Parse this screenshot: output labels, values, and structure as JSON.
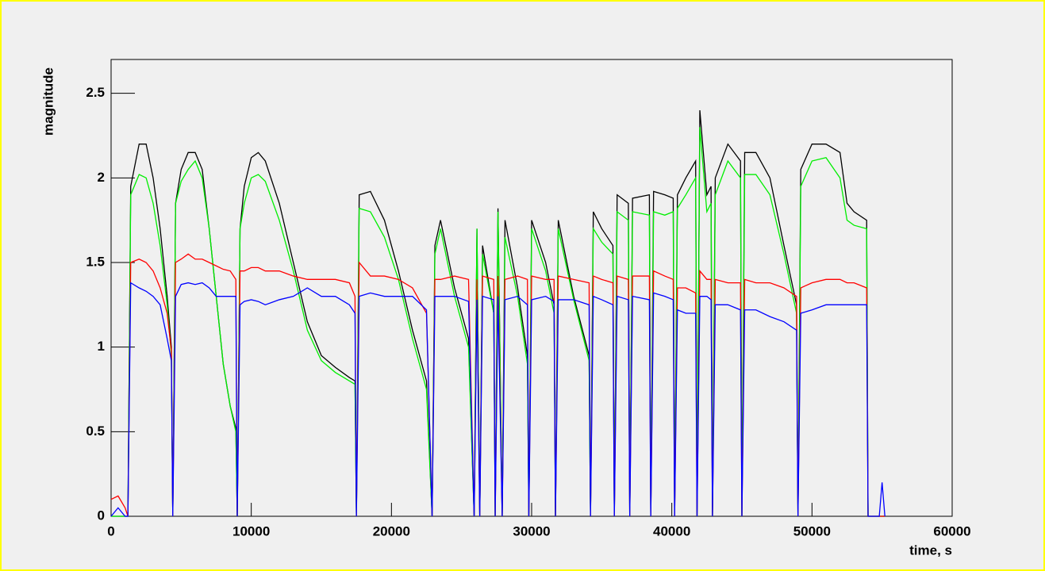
{
  "chart_data": {
    "type": "line",
    "x_label": "time, s",
    "y_label": "magnitude",
    "xlim": [
      0,
      60000
    ],
    "ylim": [
      0,
      2.7
    ],
    "xticks": [
      0,
      10000,
      20000,
      30000,
      40000,
      50000,
      60000
    ],
    "yticks": [
      0,
      0.5,
      1,
      1.5,
      2,
      2.5
    ],
    "x": [
      0,
      500,
      1000,
      1200,
      1400,
      2000,
      2500,
      3000,
      3500,
      4000,
      4300,
      4400,
      4600,
      5000,
      5500,
      6000,
      6500,
      7000,
      7500,
      8000,
      8500,
      8900,
      9000,
      9200,
      9500,
      10000,
      10500,
      11000,
      12000,
      13000,
      14000,
      15000,
      16000,
      17000,
      17400,
      17500,
      17700,
      18500,
      19500,
      20500,
      21500,
      22500,
      22900,
      23100,
      23500,
      24500,
      25500,
      25900,
      26100,
      26300,
      26500,
      27300,
      27400,
      27600,
      27900,
      28100,
      29000,
      29700,
      29800,
      30000,
      31000,
      31600,
      31700,
      31900,
      33000,
      34100,
      34200,
      34400,
      35000,
      35800,
      35900,
      36100,
      36900,
      37000,
      37200,
      38400,
      38500,
      38700,
      39500,
      40100,
      40200,
      40400,
      41000,
      41700,
      41800,
      42000,
      42500,
      42800,
      42900,
      43100,
      44000,
      44900,
      45000,
      45200,
      46000,
      47000,
      48000,
      48900,
      49000,
      49200,
      50000,
      51000,
      52000,
      52500,
      53000,
      53900,
      54000,
      54800,
      55000,
      55200
    ],
    "series": [
      {
        "color": "#000000",
        "values": [
          0,
          0,
          0,
          0,
          1.95,
          2.2,
          2.2,
          2.0,
          1.7,
          1.3,
          1.0,
          0,
          1.85,
          2.05,
          2.15,
          2.15,
          2.05,
          1.7,
          1.3,
          0.9,
          0.65,
          0.52,
          0,
          1.7,
          1.95,
          2.12,
          2.15,
          2.1,
          1.85,
          1.5,
          1.15,
          0.95,
          0.88,
          0.82,
          0.8,
          0,
          1.9,
          1.92,
          1.75,
          1.45,
          1.1,
          0.8,
          0,
          1.6,
          1.75,
          1.35,
          1.05,
          0,
          1.7,
          0,
          1.6,
          1.2,
          0,
          1.82,
          0,
          1.75,
          1.35,
          0.95,
          0,
          1.75,
          1.5,
          1.25,
          0,
          1.75,
          1.3,
          0.95,
          0,
          1.8,
          1.7,
          1.6,
          0,
          1.9,
          1.85,
          0,
          1.88,
          1.9,
          0,
          1.92,
          1.9,
          1.88,
          0,
          1.9,
          2.0,
          2.1,
          0,
          2.4,
          1.9,
          1.95,
          0,
          2.0,
          2.2,
          2.1,
          0,
          2.15,
          2.15,
          2.0,
          1.6,
          1.25,
          0,
          2.05,
          2.2,
          2.2,
          2.15,
          1.85,
          1.8,
          1.75,
          0,
          0,
          0,
          0
        ]
      },
      {
        "color": "#00ee00",
        "values": [
          0,
          0,
          0,
          0,
          1.9,
          2.02,
          2.0,
          1.85,
          1.6,
          1.25,
          0.95,
          0,
          1.85,
          1.98,
          2.05,
          2.1,
          2.0,
          1.7,
          1.3,
          0.9,
          0.65,
          0.5,
          0,
          1.7,
          1.85,
          2.0,
          2.02,
          1.98,
          1.75,
          1.45,
          1.1,
          0.92,
          0.85,
          0.8,
          0.78,
          0,
          1.82,
          1.8,
          1.65,
          1.4,
          1.05,
          0.75,
          0,
          1.55,
          1.7,
          1.3,
          1.0,
          0,
          1.7,
          0,
          1.55,
          1.2,
          0,
          1.8,
          0,
          1.65,
          1.3,
          0.9,
          0,
          1.7,
          1.45,
          1.2,
          0,
          1.7,
          1.28,
          0.92,
          0,
          1.7,
          1.62,
          1.55,
          0,
          1.8,
          1.75,
          0,
          1.8,
          1.78,
          0,
          1.8,
          1.78,
          1.8,
          0,
          1.82,
          1.9,
          2.0,
          0,
          2.3,
          1.8,
          1.85,
          0,
          1.9,
          2.1,
          2.0,
          0,
          2.02,
          2.02,
          1.9,
          1.55,
          1.2,
          0,
          1.95,
          2.1,
          2.12,
          2.0,
          1.75,
          1.72,
          1.7,
          0,
          0,
          0,
          0
        ]
      },
      {
        "color": "#ff0000",
        "values": [
          0.1,
          0.12,
          0.05,
          0,
          1.5,
          1.52,
          1.5,
          1.45,
          1.35,
          1.2,
          0.98,
          0,
          1.5,
          1.52,
          1.55,
          1.52,
          1.52,
          1.5,
          1.48,
          1.46,
          1.45,
          1.4,
          0,
          1.45,
          1.45,
          1.47,
          1.47,
          1.45,
          1.45,
          1.42,
          1.4,
          1.4,
          1.4,
          1.38,
          1.3,
          0,
          1.5,
          1.42,
          1.42,
          1.4,
          1.35,
          1.2,
          0,
          1.4,
          1.4,
          1.42,
          1.4,
          0,
          1.4,
          0,
          1.42,
          1.4,
          0,
          1.42,
          0,
          1.4,
          1.42,
          1.4,
          0,
          1.42,
          1.4,
          1.4,
          0,
          1.42,
          1.4,
          1.38,
          0,
          1.42,
          1.4,
          1.38,
          0,
          1.42,
          1.4,
          0,
          1.42,
          1.42,
          0,
          1.45,
          1.42,
          1.4,
          0,
          1.35,
          1.35,
          1.32,
          0,
          1.45,
          1.4,
          1.4,
          0,
          1.4,
          1.38,
          1.38,
          0,
          1.4,
          1.38,
          1.38,
          1.35,
          1.3,
          0,
          1.35,
          1.38,
          1.4,
          1.4,
          1.38,
          1.38,
          1.35,
          0,
          0,
          0,
          0
        ]
      },
      {
        "color": "#0000ff",
        "values": [
          0,
          0.05,
          0,
          0,
          1.38,
          1.35,
          1.33,
          1.3,
          1.25,
          1.05,
          0.92,
          0,
          1.3,
          1.37,
          1.38,
          1.37,
          1.38,
          1.35,
          1.3,
          1.3,
          1.3,
          1.3,
          0,
          1.25,
          1.27,
          1.28,
          1.27,
          1.25,
          1.28,
          1.3,
          1.35,
          1.3,
          1.3,
          1.25,
          1.2,
          0,
          1.3,
          1.32,
          1.3,
          1.3,
          1.3,
          1.22,
          0,
          1.3,
          1.3,
          1.3,
          1.27,
          0,
          1.28,
          0,
          1.3,
          1.28,
          0,
          1.3,
          0,
          1.28,
          1.3,
          1.25,
          0,
          1.28,
          1.3,
          1.27,
          0,
          1.28,
          1.28,
          1.25,
          0,
          1.3,
          1.28,
          1.25,
          0,
          1.3,
          1.28,
          0,
          1.3,
          1.28,
          0,
          1.32,
          1.3,
          1.28,
          0,
          1.22,
          1.2,
          1.2,
          0,
          1.3,
          1.3,
          1.28,
          0,
          1.25,
          1.25,
          1.22,
          0,
          1.22,
          1.22,
          1.18,
          1.15,
          1.1,
          0,
          1.2,
          1.22,
          1.25,
          1.25,
          1.25,
          1.25,
          1.25,
          0,
          0,
          0.2,
          0
        ]
      }
    ]
  }
}
